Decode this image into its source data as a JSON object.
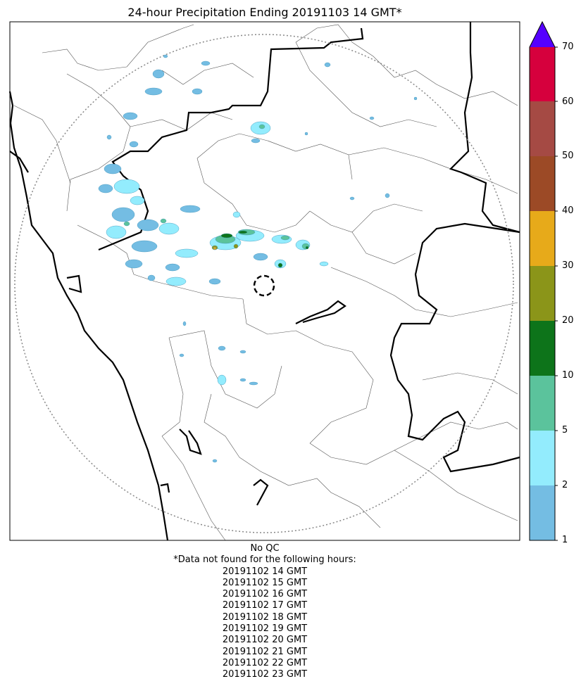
{
  "title": "24-hour Precipitation Ending 20191103 14 GMT*",
  "colorbar": {
    "levels": [
      {
        "label": "1",
        "color": "#74bde3"
      },
      {
        "label": "2",
        "color": "#93ecfd"
      },
      {
        "label": "5",
        "color": "#5bc39c"
      },
      {
        "label": "10",
        "color": "#0d741a"
      },
      {
        "label": "20",
        "color": "#8b9519"
      },
      {
        "label": "30",
        "color": "#e7aa1a"
      },
      {
        "label": "40",
        "color": "#9c4a26"
      },
      {
        "label": "50",
        "color": "#a54a44"
      },
      {
        "label": "60",
        "color": "#d6003d"
      },
      {
        "label": "70",
        "color": "#5500ff"
      }
    ],
    "extend": "max"
  },
  "notes": {
    "qc": "No QC",
    "missing_header": "*Data not found for the following hours:",
    "missing_hours": [
      "20191102 14 GMT",
      "20191102 15 GMT",
      "20191102 16 GMT",
      "20191102 17 GMT",
      "20191102 18 GMT",
      "20191102 19 GMT",
      "20191102 20 GMT",
      "20191102 21 GMT",
      "20191102 22 GMT",
      "20191102 23 GMT"
    ]
  }
}
